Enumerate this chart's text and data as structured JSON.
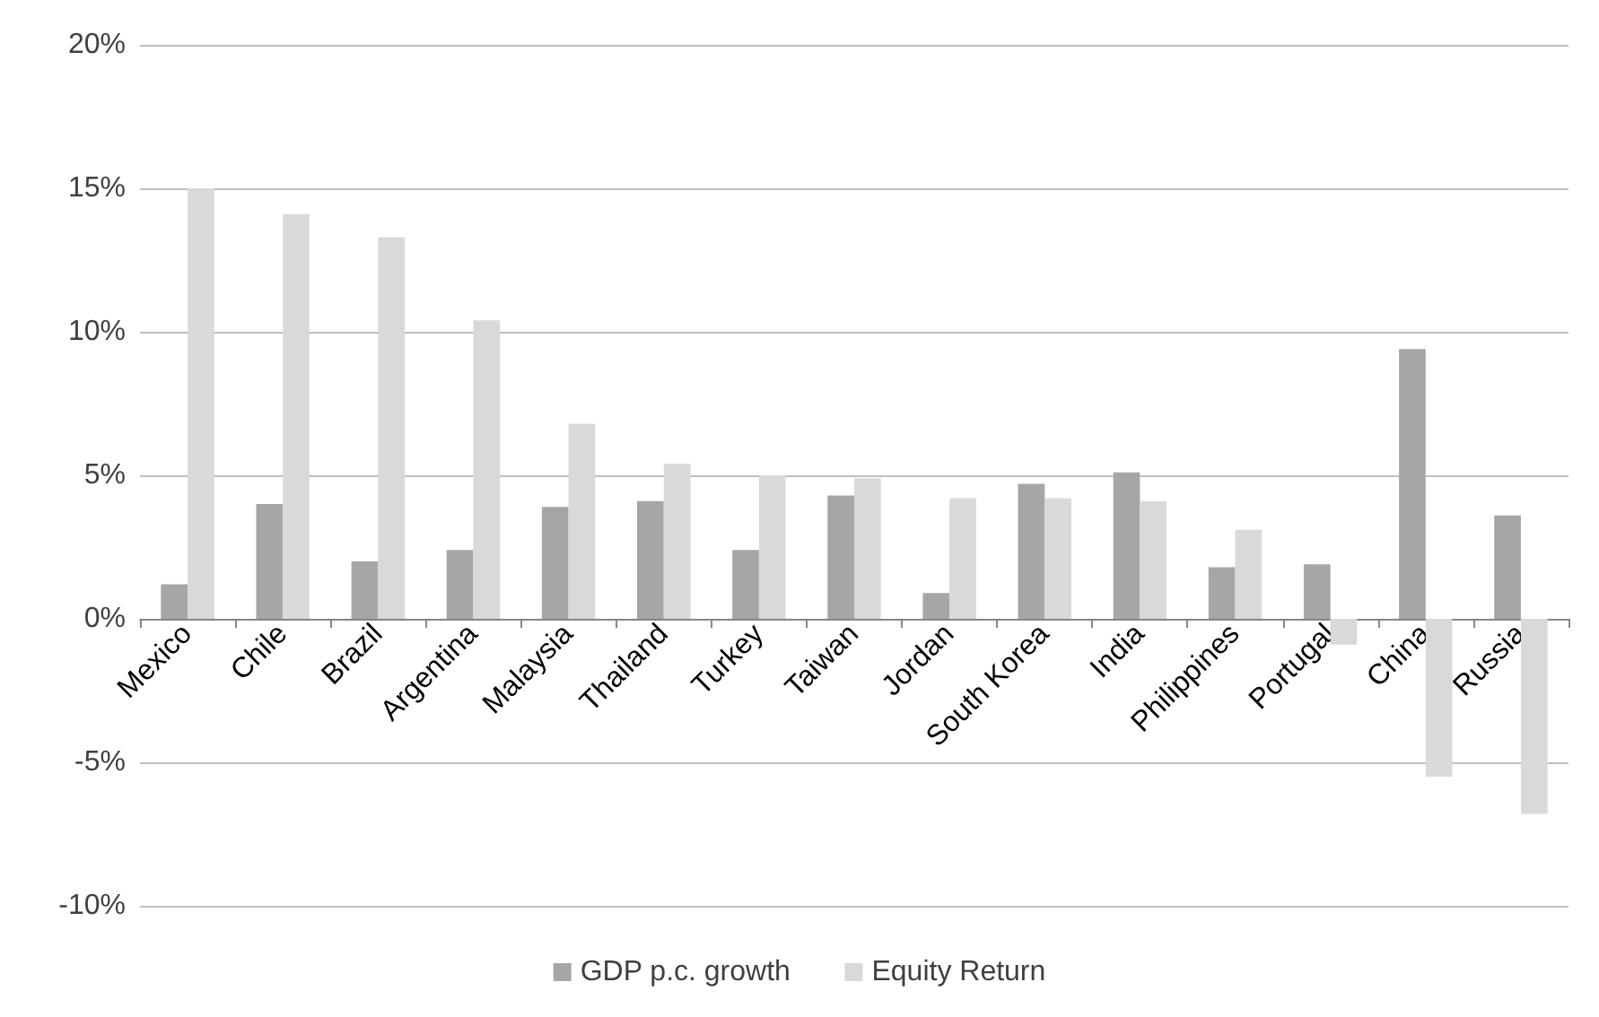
{
  "chart_data": {
    "type": "bar",
    "categories": [
      "Mexico",
      "Chile",
      "Brazil",
      "Argentina",
      "Malaysia",
      "Thailand",
      "Turkey",
      "Taiwan",
      "Jordan",
      "South Korea",
      "India",
      "Philippines",
      "Portugal",
      "China",
      "Russia"
    ],
    "series": [
      {
        "name": "GDP p.c. growth",
        "color": "#a6a6a6",
        "values": [
          1.2,
          4.0,
          2.0,
          2.4,
          3.9,
          4.1,
          2.4,
          4.3,
          0.9,
          4.7,
          5.1,
          1.8,
          1.9,
          9.4,
          3.6
        ]
      },
      {
        "name": "Equity Return",
        "color": "#d9d9d9",
        "values": [
          15.0,
          14.1,
          13.3,
          10.4,
          6.8,
          5.4,
          5.0,
          4.9,
          4.2,
          4.2,
          4.1,
          3.1,
          -0.9,
          -5.5,
          -6.8
        ]
      }
    ],
    "ylim": [
      -10,
      20
    ],
    "yticks": [
      {
        "value": -10,
        "label": "-10%"
      },
      {
        "value": -5,
        "label": "-5%"
      },
      {
        "value": 0,
        "label": "0%"
      },
      {
        "value": 5,
        "label": "5%"
      },
      {
        "value": 10,
        "label": "10%"
      },
      {
        "value": 15,
        "label": "15%"
      },
      {
        "value": 20,
        "label": "20%"
      }
    ],
    "grid": "y",
    "legend": "bottom"
  }
}
